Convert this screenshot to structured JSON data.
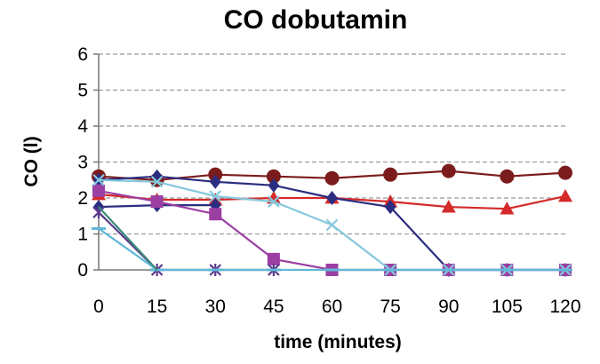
{
  "chart_data": {
    "type": "line",
    "title": "CO dobutamin",
    "xlabel": "time (minutes)",
    "ylabel": "CO (l)",
    "x": [
      0,
      15,
      30,
      45,
      60,
      75,
      90,
      105,
      120
    ],
    "x_tick_labels": [
      "0",
      "15",
      "30",
      "45",
      "60",
      "75",
      "90",
      "105",
      "120"
    ],
    "y_ticks": [
      0,
      1,
      2,
      3,
      4,
      5,
      6
    ],
    "y_tick_labels": [
      "0",
      "1",
      "2",
      "3",
      "4",
      "5",
      "6"
    ],
    "xlim": [
      0,
      120
    ],
    "ylim": [
      0,
      6
    ],
    "grid": "horizontal dashed",
    "legend": "none",
    "series": [
      {
        "color": "#7b1c1c",
        "marker": "circle",
        "values": [
          2.6,
          2.5,
          2.65,
          2.6,
          2.55,
          2.65,
          2.75,
          2.6,
          2.7
        ]
      },
      {
        "color": "#d42a2a",
        "marker": "triangle",
        "values": [
          2.1,
          1.95,
          1.95,
          2.0,
          2.0,
          1.9,
          1.75,
          1.7,
          2.05
        ]
      },
      {
        "color": "#2b2d80",
        "marker": "diamond",
        "values": [
          1.75,
          1.8,
          1.8,
          null,
          null,
          null,
          null,
          null,
          null
        ]
      },
      {
        "color": "#2b2d80",
        "marker": "diamond",
        "values": [
          2.5,
          2.6,
          2.45,
          2.35,
          2.0,
          1.75,
          0.0,
          0.0,
          0.0
        ]
      },
      {
        "color": "#9b3fa3",
        "marker": "square",
        "values": [
          2.2,
          1.9,
          1.55,
          0.3,
          0.0,
          0.0,
          0.0,
          0.0,
          0.0
        ]
      },
      {
        "color": "#86c8dc",
        "marker": "x",
        "values": [
          2.5,
          2.45,
          2.05,
          1.9,
          1.25,
          0.0,
          0.0,
          0.0,
          0.0
        ]
      },
      {
        "color": "#5b3a8c",
        "marker": "asterisk",
        "values": [
          1.6,
          0.0,
          0.0,
          0.0,
          null,
          null,
          null,
          null,
          null
        ]
      },
      {
        "color": "#5fb8d8",
        "marker": "dash",
        "values": [
          1.15,
          0.0,
          0.0,
          0.0,
          0.0,
          0.0,
          0.0,
          0.0,
          0.0
        ]
      },
      {
        "color": "#3a8a7a",
        "marker": "none",
        "values": [
          1.75,
          0.0,
          null,
          null,
          null,
          null,
          null,
          null,
          null
        ]
      }
    ]
  }
}
